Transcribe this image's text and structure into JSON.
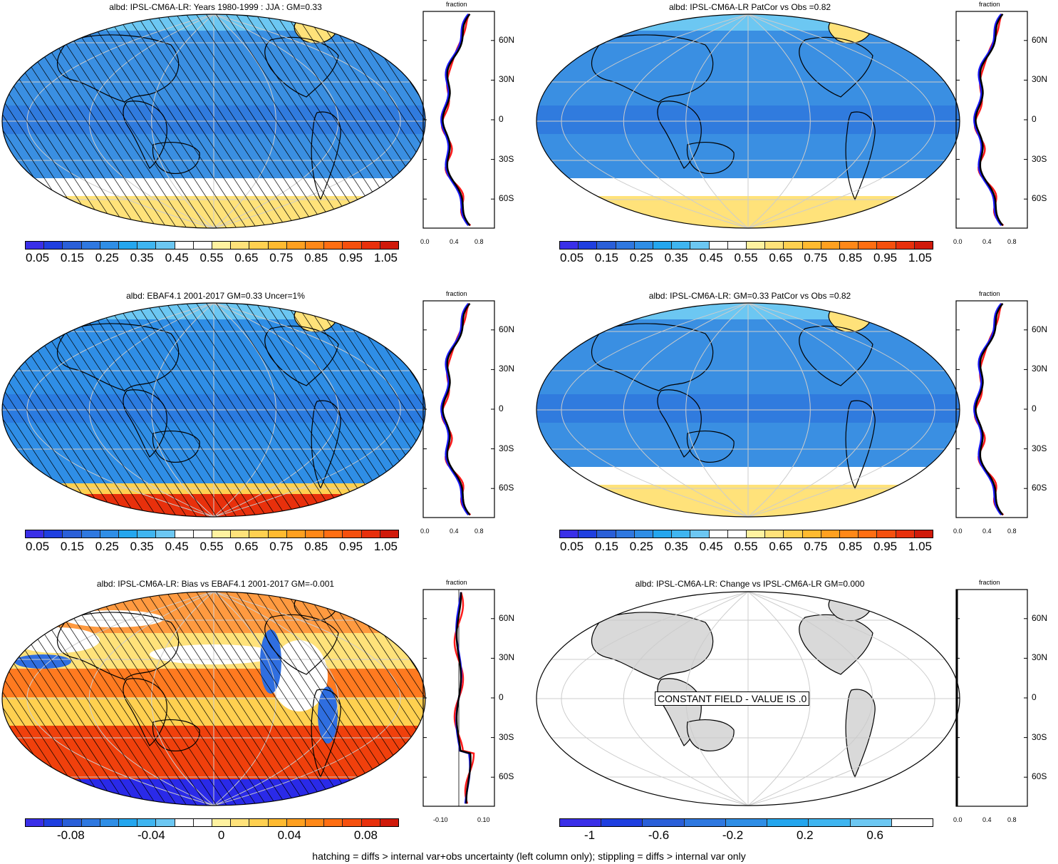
{
  "panels": [
    {
      "title": "albd: IPSL-CM6A-LR: Years 1980-1999 : JJA : GM=0.33",
      "cb": "abs",
      "fill": "albedo_model",
      "hatch": true
    },
    {
      "title": "albd: IPSL-CM6A-LR PatCor vs Obs =0.82",
      "cb": "abs",
      "fill": "albedo_model",
      "hatch": false
    },
    {
      "title": "albd: EBAF4.1 2001-2017 GM=0.33 Uncer=1%",
      "cb": "abs",
      "fill": "albedo_obs",
      "hatch": true
    },
    {
      "title": "albd: IPSL-CM6A-LR: GM=0.33 PatCor vs Obs =0.82",
      "cb": "abs",
      "fill": "albedo_model",
      "hatch": false
    },
    {
      "title": "albd: IPSL-CM6A-LR: Bias vs EBAF4.1 2001-2017 GM=-0.001",
      "cb": "bias",
      "fill": "bias",
      "hatch": true
    },
    {
      "title": "albd: IPSL-CM6A-LR: Change vs IPSL-CM6A-LR GM=0.000",
      "cb": "change",
      "fill": "constant",
      "hatch": false
    }
  ],
  "colorbars": {
    "abs": {
      "labels": [
        "0.05",
        "0.15",
        "0.25",
        "0.35",
        "0.45",
        "0.55",
        "0.65",
        "0.75",
        "0.85",
        "0.95",
        "1.05"
      ],
      "colors": [
        "#3a2fe8",
        "#1f3fe0",
        "#2a5fd8",
        "#2f78e0",
        "#2f8ee6",
        "#24a6ee",
        "#3fb5f0",
        "#6cc7f2",
        "#ffffff",
        "#ffffff",
        "#fff2a0",
        "#ffe27a",
        "#ffd050",
        "#ffba30",
        "#ffa020",
        "#ff8818",
        "#ff6e12",
        "#f5500e",
        "#e8300c",
        "#d01a0a"
      ]
    },
    "bias": {
      "labels": [
        "-0.08",
        "-0.04",
        "0",
        "0.04",
        "0.08"
      ],
      "colors": [
        "#3a2fe8",
        "#1f3fe0",
        "#2a5fd8",
        "#2f78e0",
        "#2f8ee6",
        "#24a6ee",
        "#3fb5f0",
        "#6cc7f2",
        "#ffffff",
        "#ffffff",
        "#fff2a0",
        "#ffe27a",
        "#ffd050",
        "#ffba30",
        "#ffa020",
        "#ff8818",
        "#ff6e12",
        "#f5500e",
        "#e8300c",
        "#d01a0a"
      ]
    },
    "change": {
      "labels": [
        "-1",
        "-0.6",
        "-0.2",
        "0.2",
        "0.6"
      ],
      "colors": [
        "#3a2fe8",
        "#1f3fe0",
        "#2a5fd8",
        "#2f78e0",
        "#2f8ee6",
        "#24a6ee",
        "#3fb5f0",
        "#6cc7f2",
        "#ffffff"
      ]
    }
  },
  "profiles": {
    "lat_labels": [
      "60N",
      "30N",
      "0",
      "30S",
      "60S"
    ],
    "x_title": "fraction",
    "x_labels_abs": [
      "0.0",
      "0.4",
      "0.8"
    ],
    "x_labels_bias": [
      "-0.10",
      "0.10"
    ],
    "series_colors": {
      "model": "#1a1aff",
      "obs": "#ff1a1a",
      "line": "#000000"
    }
  },
  "constant_label": "CONSTANT FIELD - VALUE IS .0",
  "footer": "hatching = diffs > internal var+obs uncertainty (left column only); stippling = diffs > internal var only",
  "colors": {
    "land_gray": "#d9d9d9",
    "grid": "#cccccc"
  }
}
